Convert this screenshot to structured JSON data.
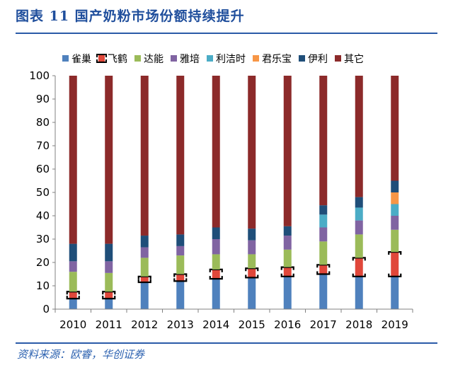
{
  "figure_title": "图表 11   国产奶粉市场份额持续提升",
  "source": "资料来源：欧睿，华创证券",
  "colors": {
    "雀巢": "#4f81bd",
    "飞鹤": "#e0473a",
    "达能": "#9bbb59",
    "雅培": "#8064a2",
    "利洁时": "#4bacc6",
    "君乐宝": "#f79646",
    "伊利": "#1f4e79",
    "其它": "#8c2a2a"
  },
  "chart_data": {
    "type": "bar",
    "stacked": true,
    "title": "",
    "xlabel": "",
    "ylabel": "",
    "ylim": [
      0,
      100
    ],
    "yticks": [
      0,
      10,
      20,
      30,
      40,
      50,
      60,
      70,
      80,
      90,
      100
    ],
    "grid": false,
    "legend_position": "top",
    "categories": [
      "2010",
      "2011",
      "2012",
      "2013",
      "2014",
      "2015",
      "2016",
      "2017",
      "2018",
      "2019"
    ],
    "series": [
      {
        "name": "雀巢",
        "values": [
          4.5,
          4.5,
          11.5,
          12,
          13,
          13.5,
          14,
          15,
          14,
          14
        ]
      },
      {
        "name": "飞鹤",
        "values": [
          3,
          3,
          2.5,
          3,
          4,
          4,
          4,
          4,
          8,
          10.5
        ]
      },
      {
        "name": "达能",
        "values": [
          8.5,
          8,
          8,
          8,
          6.5,
          6,
          7.5,
          10,
          10,
          9.5
        ]
      },
      {
        "name": "雅培",
        "values": [
          4.5,
          5,
          4.5,
          4,
          6.5,
          6,
          6,
          6,
          6,
          6
        ]
      },
      {
        "name": "利洁时",
        "values": [
          0,
          0,
          0,
          0,
          0,
          0,
          0,
          5.5,
          5.5,
          5
        ]
      },
      {
        "name": "君乐宝",
        "values": [
          0,
          0,
          0,
          0,
          0,
          0,
          0,
          0,
          0,
          5
        ]
      },
      {
        "name": "伊利",
        "values": [
          7.5,
          7.5,
          5,
          5,
          5,
          5,
          4,
          4,
          4.5,
          5
        ]
      },
      {
        "name": "其它",
        "values": [
          72,
          72,
          68.5,
          68,
          65,
          65.5,
          64.5,
          55.5,
          52,
          45
        ]
      }
    ]
  }
}
